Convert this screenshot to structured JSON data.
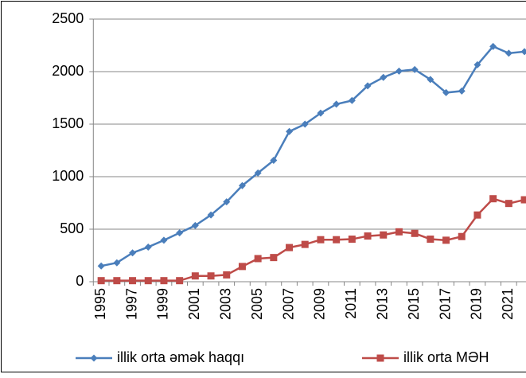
{
  "chart_data": {
    "type": "line",
    "categories": [
      "1995",
      null,
      "1997",
      null,
      "1999",
      null,
      "2001",
      null,
      "2003",
      null,
      "2005",
      null,
      "2007",
      null,
      "2009",
      null,
      "2011",
      null,
      "2013",
      null,
      "2015",
      null,
      "2017",
      null,
      "2019",
      null,
      "2021",
      null
    ],
    "series": [
      {
        "name": "illik orta əmək haqqı",
        "color": "#4a7ebb",
        "marker": "diamond",
        "values": [
          150,
          180,
          275,
          330,
          395,
          465,
          535,
          635,
          760,
          915,
          1035,
          1155,
          1430,
          1500,
          1605,
          1690,
          1725,
          1865,
          1945,
          2005,
          2020,
          1925,
          1800,
          1815,
          2065,
          2240,
          2175,
          2190
        ]
      },
      {
        "name": "illik orta MƏH",
        "color": "#be4b48",
        "marker": "square",
        "values": [
          10,
          10,
          10,
          10,
          10,
          10,
          55,
          55,
          65,
          145,
          220,
          230,
          325,
          355,
          400,
          400,
          405,
          435,
          445,
          475,
          460,
          405,
          395,
          430,
          635,
          790,
          745,
          780
        ]
      }
    ],
    "ylim": [
      0,
      2500
    ],
    "yticks": [
      0,
      500,
      1000,
      1500,
      2000,
      2500
    ],
    "grid": true,
    "legend": "bottom"
  }
}
